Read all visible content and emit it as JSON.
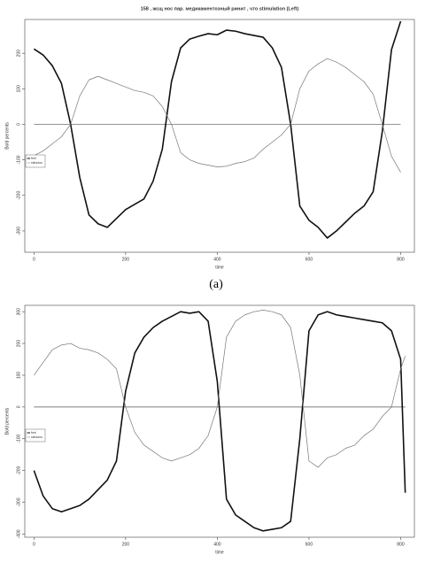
{
  "caption": "(a)",
  "chart_data": [
    {
      "type": "line",
      "title": "158 , жсщ нос пар. медикаментозный ринит , что stimulation (Left)",
      "xlabel": "time",
      "ylabel": "Bold percents",
      "x": [
        0,
        20,
        40,
        60,
        80,
        100,
        120,
        140,
        160,
        180,
        200,
        220,
        240,
        260,
        280,
        300,
        320,
        340,
        360,
        380,
        400,
        420,
        440,
        460,
        480,
        500,
        520,
        540,
        560,
        580,
        600,
        620,
        640,
        660,
        680,
        700,
        720,
        740,
        760,
        780,
        800
      ],
      "series": [
        {
          "name": "fmri",
          "color": "#111111",
          "values": [
            212,
            195,
            165,
            115,
            0,
            -150,
            -255,
            -280,
            -290,
            -265,
            -240,
            -225,
            -210,
            -160,
            -70,
            120,
            215,
            240,
            248,
            255,
            252,
            265,
            262,
            255,
            250,
            245,
            215,
            160,
            0,
            -230,
            -270,
            -290,
            -320,
            -300,
            -275,
            -250,
            -230,
            -190,
            -20,
            210,
            290
          ]
        },
        {
          "name": "stimulus",
          "color": "#777777",
          "values": [
            -88,
            -75,
            -55,
            -35,
            0,
            80,
            125,
            135,
            125,
            115,
            105,
            95,
            90,
            80,
            50,
            0,
            -80,
            -100,
            -110,
            -115,
            -120,
            -118,
            -110,
            -105,
            -95,
            -70,
            -50,
            -30,
            0,
            100,
            150,
            170,
            185,
            175,
            160,
            140,
            120,
            85,
            0,
            -90,
            -135
          ]
        }
      ],
      "xlim": [
        -20,
        830
      ],
      "xticks": [
        0,
        200,
        400,
        600,
        800
      ],
      "ylim": [
        -360,
        295
      ],
      "yticks": [
        -300,
        -200,
        -100,
        0,
        100,
        200
      ],
      "legend": "left"
    },
    {
      "type": "line",
      "xlabel": "time",
      "ylabel": "Bold percents",
      "x": [
        0,
        20,
        40,
        60,
        80,
        100,
        120,
        140,
        160,
        180,
        200,
        220,
        240,
        260,
        280,
        300,
        320,
        340,
        360,
        380,
        400,
        420,
        440,
        460,
        480,
        500,
        520,
        540,
        560,
        580,
        600,
        620,
        640,
        660,
        680,
        700,
        720,
        740,
        760,
        780,
        800,
        810
      ],
      "series": [
        {
          "name": "fmri",
          "color": "#111111",
          "values": [
            -200,
            -280,
            -320,
            -330,
            -320,
            -310,
            -290,
            -260,
            -230,
            -170,
            50,
            170,
            220,
            250,
            270,
            285,
            300,
            295,
            300,
            270,
            80,
            -290,
            -340,
            -360,
            -380,
            -390,
            -385,
            -380,
            -360,
            -100,
            240,
            290,
            300,
            290,
            285,
            280,
            275,
            270,
            265,
            240,
            150,
            -270
          ]
        },
        {
          "name": "stimulus",
          "color": "#777777",
          "values": [
            100,
            140,
            180,
            195,
            200,
            185,
            180,
            170,
            150,
            120,
            0,
            -80,
            -120,
            -140,
            -160,
            -170,
            -160,
            -150,
            -130,
            -90,
            0,
            220,
            270,
            290,
            300,
            305,
            300,
            290,
            250,
            100,
            -170,
            -190,
            -160,
            -150,
            -130,
            -120,
            -90,
            -70,
            -30,
            0,
            120,
            160
          ]
        }
      ],
      "xlim": [
        -20,
        830
      ],
      "xticks": [
        0,
        200,
        400,
        600,
        800
      ],
      "ylim": [
        -410,
        320
      ],
      "yticks": [
        -400,
        -300,
        -200,
        -100,
        0,
        100,
        200,
        300
      ],
      "legend": "left"
    }
  ]
}
